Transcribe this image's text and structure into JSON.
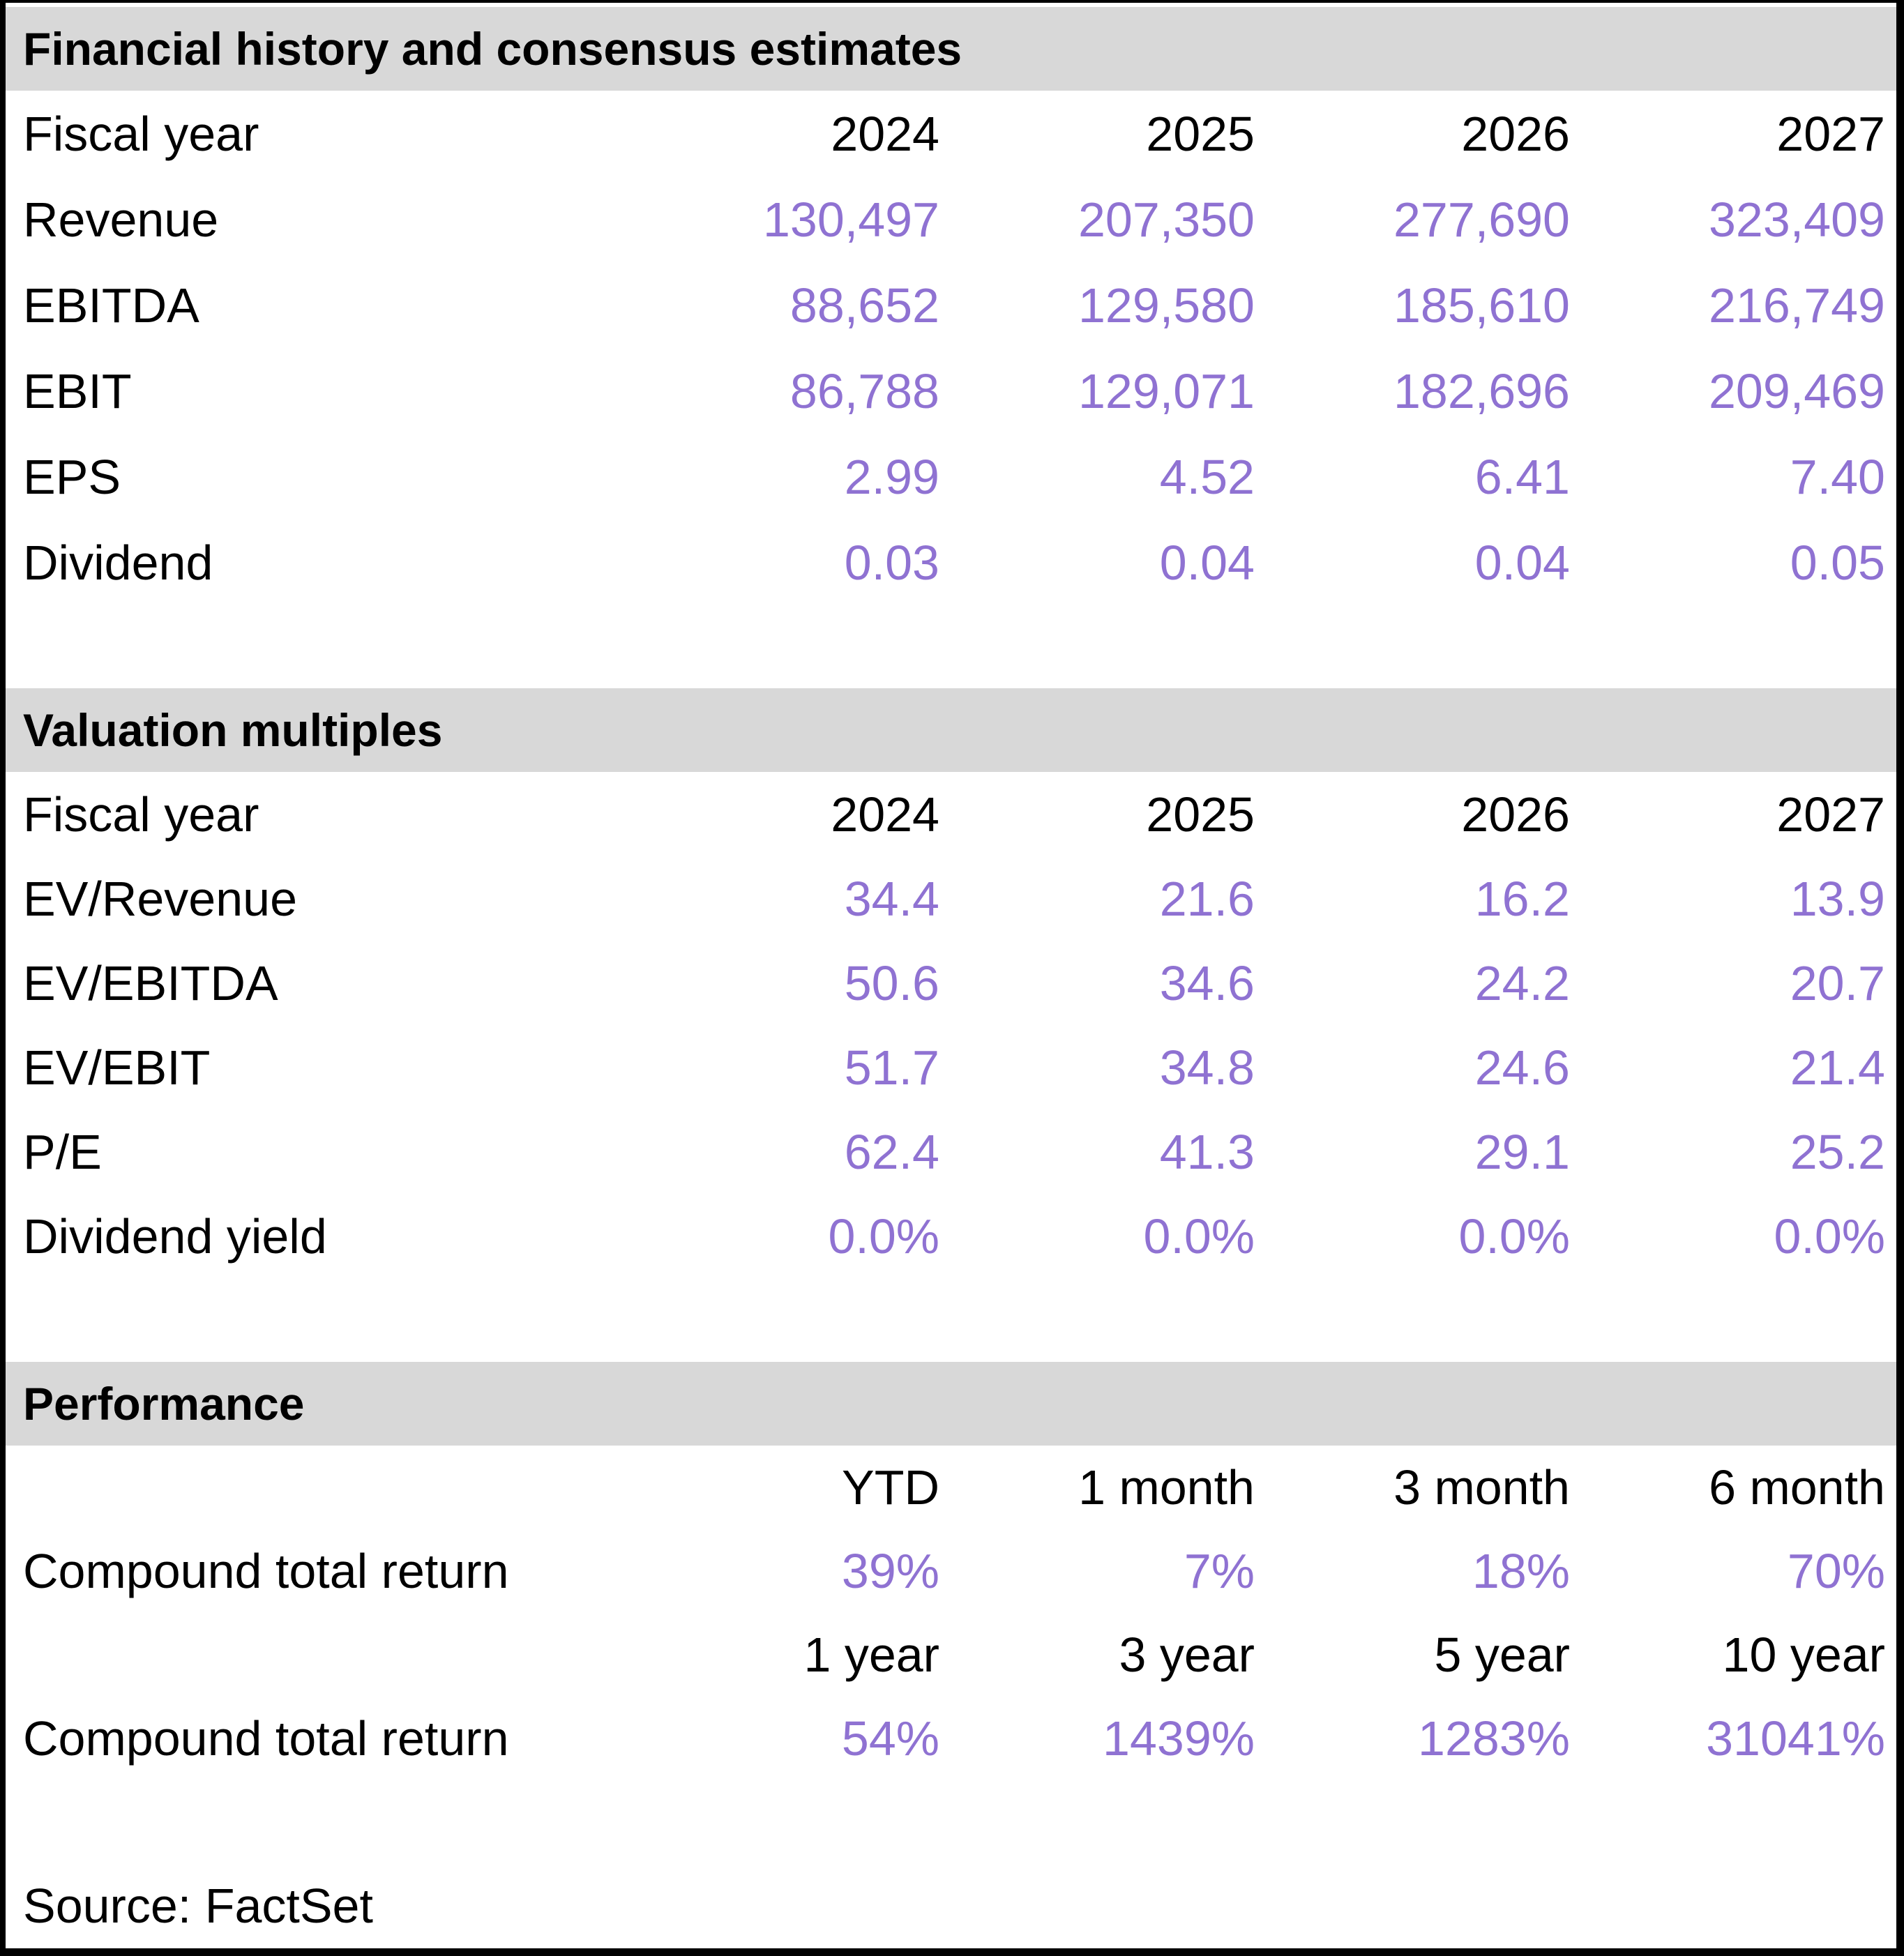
{
  "colors": {
    "accent_purple": "#8F72D2",
    "band_background": "#D8D8D8",
    "text": "#000000",
    "border": "#000000"
  },
  "sections": [
    {
      "title": "Financial history and consensus estimates",
      "header": {
        "label": "Fiscal year",
        "values": [
          "2024",
          "2025",
          "2026",
          "2027"
        ]
      },
      "rows": [
        {
          "label": "Revenue",
          "values": [
            "130,497",
            "207,350",
            "277,690",
            "323,409"
          ]
        },
        {
          "label": "EBITDA",
          "values": [
            "88,652",
            "129,580",
            "185,610",
            "216,749"
          ]
        },
        {
          "label": "EBIT",
          "values": [
            "86,788",
            "129,071",
            "182,696",
            "209,469"
          ]
        },
        {
          "label": "EPS",
          "values": [
            "2.99",
            "4.52",
            "6.41",
            "7.40"
          ]
        },
        {
          "label": "Dividend",
          "values": [
            "0.03",
            "0.04",
            "0.04",
            "0.05"
          ]
        }
      ]
    },
    {
      "title": "Valuation multiples",
      "header": {
        "label": "Fiscal year",
        "values": [
          "2024",
          "2025",
          "2026",
          "2027"
        ]
      },
      "rows": [
        {
          "label": "EV/Revenue",
          "values": [
            "34.4",
            "21.6",
            "16.2",
            "13.9"
          ]
        },
        {
          "label": "EV/EBITDA",
          "values": [
            "50.6",
            "34.6",
            "24.2",
            "20.7"
          ]
        },
        {
          "label": "EV/EBIT",
          "values": [
            "51.7",
            "34.8",
            "24.6",
            "21.4"
          ]
        },
        {
          "label": "P/E",
          "values": [
            "62.4",
            "41.3",
            "29.1",
            "25.2"
          ]
        },
        {
          "label": "Dividend yield",
          "values": [
            "0.0%",
            "0.0%",
            "0.0%",
            "0.0%"
          ]
        }
      ]
    },
    {
      "title": "Performance",
      "groups": [
        {
          "header": {
            "label": "",
            "values": [
              "YTD",
              "1 month",
              "3 month",
              "6 month"
            ]
          },
          "row": {
            "label": "Compound total return",
            "values": [
              "39%",
              "7%",
              "18%",
              "70%"
            ]
          }
        },
        {
          "header": {
            "label": "",
            "values": [
              "1 year",
              "3 year",
              "5 year",
              "10 year"
            ]
          },
          "row": {
            "label": "Compound total return",
            "values": [
              "54%",
              "1439%",
              "1283%",
              "31041%"
            ]
          }
        }
      ]
    }
  ],
  "source": "Source: FactSet"
}
